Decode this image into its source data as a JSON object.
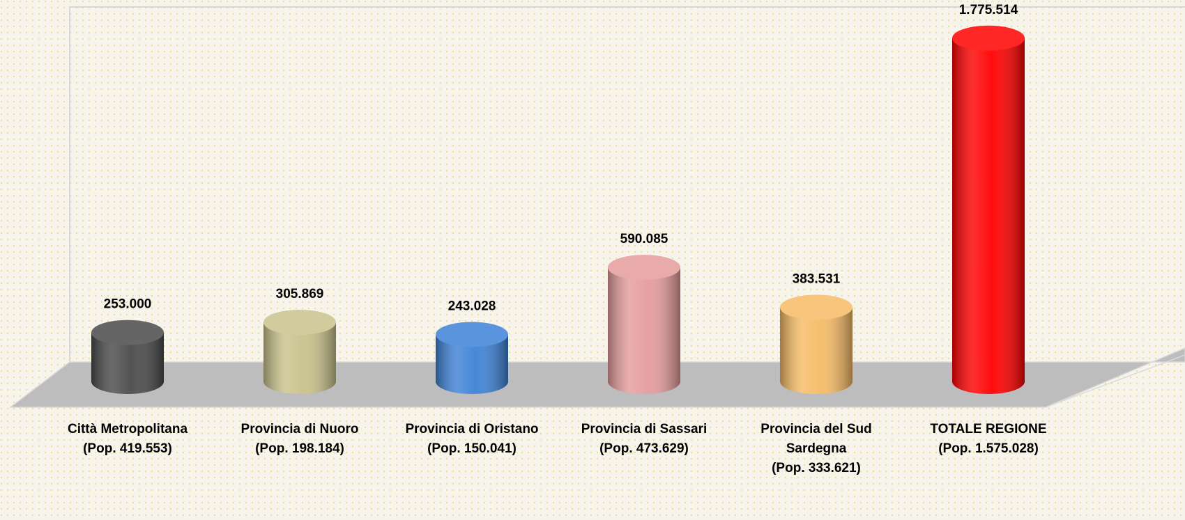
{
  "chart_data": {
    "type": "bar3d",
    "categories": [
      [
        "Città Metropolitana",
        "(Pop. 419.553)"
      ],
      [
        "Provincia di Nuoro",
        "(Pop. 198.184)"
      ],
      [
        "Provincia di Oristano",
        "(Pop. 150.041)"
      ],
      [
        "Provincia di Sassari",
        "(Pop. 473.629)"
      ],
      [
        "Provincia del Sud",
        "Sardegna",
        "(Pop. 333.621)"
      ],
      [
        "TOTALE REGIONE",
        "(Pop. 1.575.028)"
      ]
    ],
    "values": [
      253000,
      305869,
      243028,
      590085,
      383531,
      1775514
    ],
    "value_labels": [
      "253.000",
      "305.869",
      "243.028",
      "590.085",
      "383.531",
      "1.775.514"
    ],
    "colors": [
      "#4a4a4a",
      "#c9c28c",
      "#3d82d6",
      "#e59c9c",
      "#f6bb66",
      "#ff0000"
    ],
    "ylim": [
      0,
      1800000
    ]
  }
}
